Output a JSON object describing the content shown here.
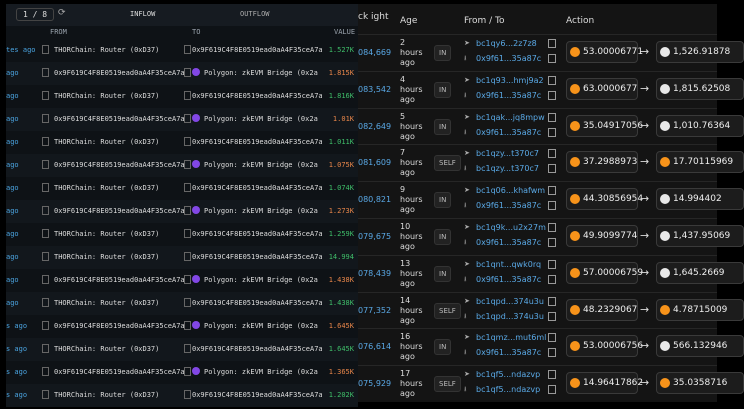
{
  "left": {
    "pager": "1 / 8",
    "tabs": [
      "INFLOW",
      "OUTFLOW"
    ],
    "columns": [
      "FROM",
      "TO",
      "VALUE"
    ],
    "rows": [
      [
        "tes ago",
        "THORChain: Router (0xD37)",
        "0x9F619C4F8E0519ead0aA4F35ceA7a",
        "1.527K"
      ],
      [
        "ago",
        "0x9F619C4F8E0519ead0aA4F35ceA7a",
        "Polygon: zkEVM Bridge (0x2a",
        "1.815K"
      ],
      [
        "ago",
        "THORChain: Router (0xD37)",
        "0x9F619C4F8E0519ead0aA4F35ceA7a",
        "1.816K"
      ],
      [
        "ago",
        "0x9F619C4F8E0519ead0aA4F35ceA7a",
        "Polygon: zkEVM Bridge (0x2a",
        "1.01K"
      ],
      [
        "ago",
        "THORChain: Router (0xD37)",
        "0x9F619C4F8E0519ead0aA4F35ceA7a",
        "1.011K"
      ],
      [
        "ago",
        "0x9F619C4F8E0519ead0aA4F35ceA7a",
        "Polygon: zkEVM Bridge (0x2a",
        "1.075K"
      ],
      [
        "ago",
        "THORChain: Router (0xD37)",
        "0x9F619C4F8E0519ead0aA4F35ceA7a",
        "1.074K"
      ],
      [
        "ago",
        "0x9F619C4F8E0519ead0aA4F35ceA7a",
        "Polygon: zkEVM Bridge (0x2a",
        "1.273K"
      ],
      [
        "ago",
        "THORChain: Router (0xD37)",
        "0x9F619C4F8E0519ead0aA4F35ceA7a",
        "1.259K"
      ],
      [
        "ago",
        "THORChain: Router (0xD37)",
        "0x9F619C4F8E0519ead0aA4F35ceA7a",
        "14.994"
      ],
      [
        "ago",
        "0x9F619C4F8E0519ead0aA4F35ceA7a",
        "Polygon: zkEVM Bridge (0x2a",
        "1.438K"
      ],
      [
        "ago",
        "THORChain: Router (0xD37)",
        "0x9F619C4F8E0519ead0aA4F35ceA7a",
        "1.438K"
      ],
      [
        "s ago",
        "0x9F619C4F8E0519ead0aA4F35ceA7a",
        "Polygon: zkEVM Bridge (0x2a",
        "1.645K"
      ],
      [
        "s ago",
        "THORChain: Router (0xD37)",
        "0x9F619C4F8E0519ead0aA4F35ceA7a",
        "1.645K"
      ],
      [
        "s ago",
        "0x9F619C4F8E0519ead0aA4F35ceA7a",
        "Polygon: zkEVM Bridge (0x2a",
        "1.365K"
      ],
      [
        "s ago",
        "THORChain: Router (0xD37)",
        "0x9F619C4F8E0519ead0aA4F35ceA7a",
        "1.202K"
      ]
    ]
  },
  "right": {
    "columns": [
      "ck ight",
      "Age",
      "From / To",
      "Action"
    ],
    "rows": [
      [
        "084,669",
        "2 hours ago",
        "IN",
        "bc1qy6...2z7z8",
        "0x9f61...35a87c",
        "53.00006771",
        "1,526.91878"
      ],
      [
        "083,542",
        "4 hours ago",
        "IN",
        "bc1q93...hmj9a2",
        "0x9f61...35a87c",
        "63.0000677",
        "1,815.62508"
      ],
      [
        "082,649",
        "5 hours ago",
        "IN",
        "bc1qak...jq8mpw",
        "0x9f61...35a87c",
        "35.04917056",
        "1,010.76364"
      ],
      [
        "081,609",
        "7 hours ago",
        "SELF",
        "bc1qzy...t370c7",
        "bc1qzy...t370c7",
        "37.2988973",
        "17.70115969"
      ],
      [
        "080,821",
        "9 hours ago",
        "IN",
        "bc1q06...khafwm",
        "0x9f61...35a87c",
        "44.30856954",
        "14.994402"
      ],
      [
        "079,675",
        "10 hours ago",
        "IN",
        "bc1q9k...u2x27m",
        "0x9f61...35a87c",
        "49.9099774",
        "1,437.95069"
      ],
      [
        "078,439",
        "13 hours ago",
        "IN",
        "bc1qnt...qwk0rq",
        "0x9f61...35a87c",
        "57.00006759",
        "1,645.2669"
      ],
      [
        "077,352",
        "14 hours ago",
        "SELF",
        "bc1qpd...374u3u",
        "bc1qpd...374u3u",
        "48.2329067",
        "4.78715009"
      ],
      [
        "076,614",
        "16 hours ago",
        "IN",
        "bc1qmz...mut6ml",
        "0x9f61...35a87c",
        "53.00006756",
        "566.132946"
      ],
      [
        "075,929",
        "17 hours ago",
        "SELF",
        "bc1qf5...ndazvp",
        "bc1qf5...ndazvp",
        "14.96417862",
        "35.0358716"
      ]
    ]
  }
}
